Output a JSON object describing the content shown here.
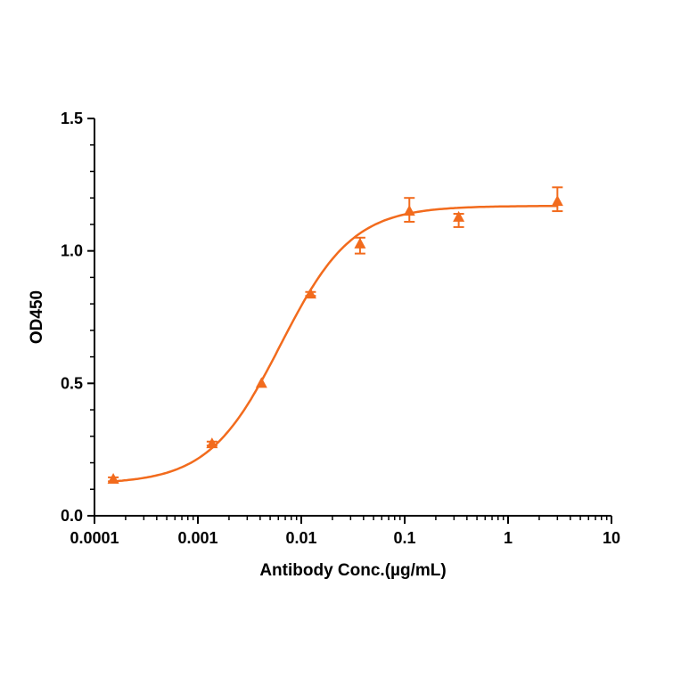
{
  "chart_data": {
    "type": "scatter",
    "title": "",
    "xlabel": "Antibody Conc.(µg/mL)",
    "ylabel": "OD450",
    "xscale": "log",
    "xlim": [
      0.0001,
      10
    ],
    "ylim": [
      0,
      1.5
    ],
    "xticks": [
      "0.0001",
      "0.001",
      "0.01",
      "0.1",
      "1",
      "10"
    ],
    "yticks": [
      "0.0",
      "0.5",
      "1.0",
      "1.5"
    ],
    "color": "#f26b1d",
    "series": [
      {
        "name": "OD450",
        "x": [
          0.000152,
          0.00137,
          0.00412,
          0.0123,
          0.037,
          0.111,
          0.333,
          3
        ],
        "y": [
          0.138,
          0.272,
          0.5,
          0.837,
          1.026,
          1.15,
          1.127,
          1.187
        ],
        "err_low": [
          0.13,
          0.265,
          0.495,
          0.83,
          0.99,
          1.11,
          1.09,
          1.15
        ],
        "err_high": [
          0.145,
          0.28,
          0.505,
          0.845,
          1.05,
          1.2,
          1.14,
          1.24
        ]
      }
    ],
    "fit": {
      "model": "4PL",
      "bottom": 0.12,
      "top": 1.17,
      "ec50": 0.0063,
      "hill": 1.25
    },
    "grid": false,
    "legend": "none"
  }
}
